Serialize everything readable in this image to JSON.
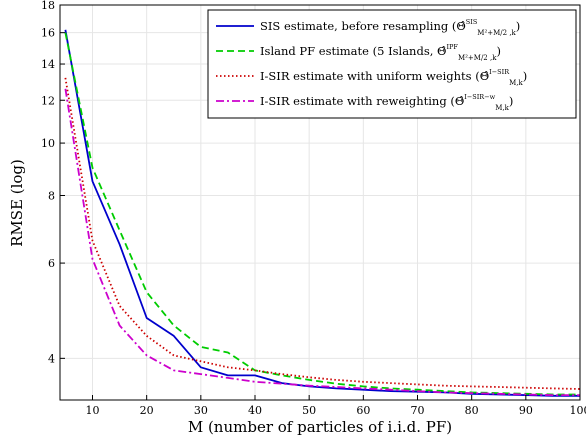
{
  "chart_data": {
    "type": "line",
    "xlabel": "M (number of particles of i.i.d. PF)",
    "ylabel": "RMSE (log)",
    "xlim": [
      4,
      100
    ],
    "ylim": [
      3.35,
      18
    ],
    "yscale": "log",
    "grid": true,
    "legend_position": "top-right",
    "x_ticks": [
      10,
      20,
      30,
      40,
      50,
      60,
      70,
      80,
      90,
      100
    ],
    "y_ticks": [
      4,
      6,
      8,
      10,
      12,
      14,
      16,
      18
    ],
    "x": [
      5,
      10,
      15,
      20,
      25,
      30,
      35,
      40,
      45,
      50,
      55,
      60,
      65,
      70,
      75,
      80,
      85,
      90,
      95,
      100
    ],
    "series": [
      {
        "name": "SIS estimate, before resampling",
        "legend_prefix": "SIS estimate, before resampling (",
        "legend_symbol": "Θ̂",
        "legend_sup": "SIS",
        "legend_sub": "M²+M/2 ,k",
        "legend_suffix": ")",
        "color": "#0000cc",
        "dash": "solid",
        "values": [
          16.2,
          8.5,
          6.5,
          4.75,
          4.4,
          3.85,
          3.72,
          3.72,
          3.6,
          3.55,
          3.52,
          3.5,
          3.48,
          3.47,
          3.46,
          3.44,
          3.43,
          3.42,
          3.41,
          3.41
        ]
      },
      {
        "name": "Island PF estimate (5 Islands)",
        "legend_prefix": "Island PF estimate (5 Islands, ",
        "legend_symbol": "Θ̂",
        "legend_sup": "IPF",
        "legend_sub": "M²+M/2 ,k",
        "legend_suffix": ")",
        "color": "#00cc00",
        "dash": "dashed",
        "values": [
          16.0,
          9.0,
          6.9,
          5.3,
          4.6,
          4.2,
          4.1,
          3.8,
          3.72,
          3.65,
          3.59,
          3.55,
          3.52,
          3.5,
          3.48,
          3.46,
          3.45,
          3.44,
          3.43,
          3.43
        ]
      },
      {
        "name": "I-SIR estimate with uniform weights",
        "legend_prefix": "I-SIR estimate with uniform weights (",
        "legend_symbol": "Θ̂",
        "legend_sup": "I−SIR",
        "legend_sub": "M,k",
        "legend_suffix": ")",
        "color": "#cc0000",
        "dash": "dotted",
        "values": [
          13.2,
          6.6,
          5.0,
          4.4,
          4.05,
          3.95,
          3.85,
          3.8,
          3.74,
          3.69,
          3.65,
          3.62,
          3.6,
          3.58,
          3.56,
          3.55,
          3.54,
          3.53,
          3.52,
          3.51
        ]
      },
      {
        "name": "I-SIR estimate with reweighting",
        "legend_prefix": "I-SIR estimate with reweighting (",
        "legend_symbol": "Θ̂",
        "legend_sup": "I−SIR−w",
        "legend_sub": "M,k",
        "legend_suffix": ")",
        "color": "#cc00cc",
        "dash": "dashdot",
        "values": [
          12.6,
          6.1,
          4.6,
          4.05,
          3.8,
          3.74,
          3.68,
          3.62,
          3.59,
          3.56,
          3.54,
          3.52,
          3.5,
          3.48,
          3.46,
          3.45,
          3.44,
          3.43,
          3.42,
          3.42
        ]
      }
    ]
  }
}
